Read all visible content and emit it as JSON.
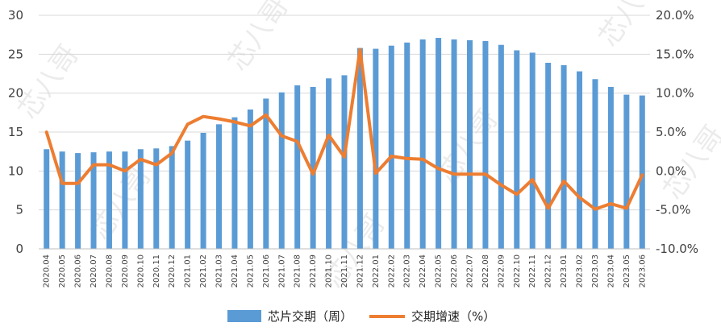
{
  "chart_data": {
    "type": "bar+line",
    "categories": [
      "2020.04",
      "2020.05",
      "2020.06",
      "2020.07",
      "2020.08",
      "2020.09",
      "2020.10",
      "2020.11",
      "2020.12",
      "2021.01",
      "2021.02",
      "2021.03",
      "2021.04",
      "2021.05",
      "2021.06",
      "2021.07",
      "2021.08",
      "2021.09",
      "2021.10",
      "2021.11",
      "2021.12",
      "2022.01",
      "2022.02",
      "2022.03",
      "2022.04",
      "2022.05",
      "2022.06",
      "2022.07",
      "2022.08",
      "2022.09",
      "2022.10",
      "2022.11",
      "2022.12",
      "2023.01",
      "2023.02",
      "2023.03",
      "2023.04",
      "2023.05",
      "2023.06"
    ],
    "series": [
      {
        "name": "芯片交期（周）",
        "type": "bar",
        "axis": "left",
        "color": "#5b9bd5",
        "values": [
          12.8,
          12.5,
          12.3,
          12.4,
          12.5,
          12.5,
          12.8,
          12.9,
          13.2,
          13.9,
          14.9,
          16.0,
          16.9,
          17.9,
          19.3,
          20.1,
          21.0,
          20.8,
          21.9,
          22.3,
          25.8,
          25.7,
          26.1,
          26.5,
          26.9,
          27.1,
          26.9,
          26.8,
          26.7,
          26.2,
          25.5,
          25.2,
          23.9,
          23.6,
          22.8,
          21.8,
          20.8,
          19.8,
          19.7
        ]
      },
      {
        "name": "交期增速（%）",
        "type": "line",
        "axis": "right",
        "color": "#ed7d31",
        "values": [
          5.0,
          -1.6,
          -1.6,
          0.8,
          0.8,
          0.0,
          1.5,
          0.8,
          2.3,
          6.0,
          7.0,
          6.7,
          6.3,
          5.8,
          7.2,
          4.5,
          3.8,
          -0.4,
          4.6,
          1.8,
          15.6,
          -0.3,
          1.9,
          1.6,
          1.5,
          0.3,
          -0.4,
          -0.4,
          -0.4,
          -1.8,
          -3.0,
          -1.1,
          -4.8,
          -1.3,
          -3.4,
          -4.9,
          -4.2,
          -4.8,
          -0.5
        ]
      }
    ],
    "y_left": {
      "min": 0,
      "max": 30,
      "ticks": [
        "0",
        "5",
        "10",
        "15",
        "20",
        "25",
        "30"
      ]
    },
    "y_right": {
      "min": -10,
      "max": 20,
      "ticks": [
        "-10.0%",
        "-5.0%",
        "0.0%",
        "5.0%",
        "10.0%",
        "15.0%",
        "20.0%"
      ]
    },
    "grid": true,
    "legend": "bottom"
  },
  "legend": {
    "bar_label": "芯片交期（周）",
    "line_label": "交期增速（%）"
  },
  "watermark": {
    "text": "芯八哥"
  }
}
